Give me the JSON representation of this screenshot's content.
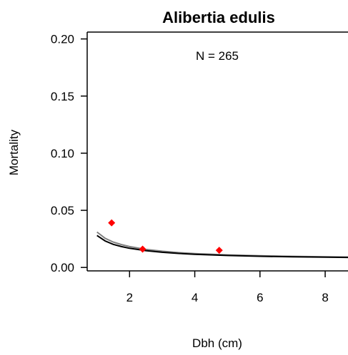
{
  "chart_data": {
    "type": "scatter",
    "title": "Alibertia edulis",
    "xlabel": "Dbh (cm)",
    "ylabel": "Mortality",
    "annotation": "N = 265",
    "xlim": [
      0.7,
      8.7
    ],
    "ylim": [
      -0.003,
      0.206
    ],
    "x_ticks": [
      2,
      4,
      6,
      8
    ],
    "x_tick_labels": [
      "2",
      "4",
      "6",
      "8"
    ],
    "y_ticks": [
      0.0,
      0.05,
      0.1,
      0.15,
      0.2
    ],
    "y_tick_labels": [
      "0.00",
      "0.05",
      "0.10",
      "0.15",
      "0.20"
    ],
    "grid": false,
    "points": {
      "color": "#ff0000",
      "marker": "diamond",
      "x": [
        1.45,
        2.4,
        4.75
      ],
      "y": [
        0.039,
        0.016,
        0.015
      ]
    },
    "series": [
      {
        "color": "#808080",
        "x": [
          1.0,
          1.25,
          1.5,
          1.75,
          2.0,
          2.5,
          3.0,
          3.5,
          4.0,
          5.0,
          6.0,
          7.0,
          8.0,
          8.7
        ],
        "y": [
          0.031,
          0.0255,
          0.0222,
          0.02,
          0.0183,
          0.0158,
          0.0142,
          0.013,
          0.0121,
          0.011,
          0.0102,
          0.0097,
          0.0093,
          0.0091
        ]
      },
      {
        "color": "#000000",
        "x": [
          1.0,
          1.25,
          1.5,
          1.75,
          2.0,
          2.5,
          3.0,
          3.5,
          4.0,
          5.0,
          6.0,
          7.0,
          8.0,
          8.7
        ],
        "y": [
          0.028,
          0.0232,
          0.0202,
          0.0183,
          0.0168,
          0.0147,
          0.0133,
          0.0123,
          0.0115,
          0.0105,
          0.0098,
          0.0093,
          0.009,
          0.0088
        ]
      }
    ]
  }
}
